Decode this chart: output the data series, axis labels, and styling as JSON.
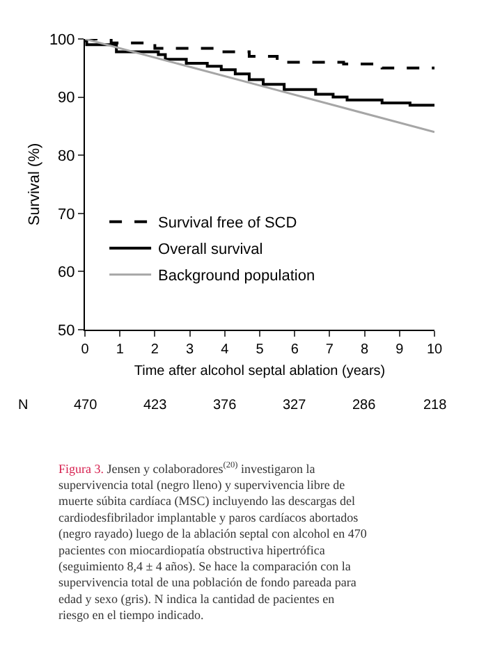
{
  "chart_data": {
    "type": "step",
    "xlabel": "Time after alcohol septal ablation (years)",
    "ylabel": "Survival (%)",
    "xlim": [
      0,
      10
    ],
    "xticks": [
      0,
      1,
      2,
      3,
      4,
      5,
      6,
      7,
      8,
      9,
      10
    ],
    "ylim": [
      50,
      100
    ],
    "yticks": [
      50,
      60,
      70,
      80,
      90,
      100
    ],
    "legend": "bottom left",
    "series": [
      {
        "name": "Survival free of SCD",
        "color": "#000000",
        "line_style": "dashed",
        "x": [
          0,
          0.75,
          2.0,
          3.8,
          4.7,
          5.5,
          7.4,
          8.5,
          10
        ],
        "values": [
          100,
          99.3,
          98.4,
          97.8,
          97.0,
          96.0,
          95.7,
          95.0,
          95.0
        ]
      },
      {
        "name": "Overall survival",
        "color": "#000000",
        "line_style": "solid",
        "x": [
          0,
          0.05,
          0.9,
          2.1,
          2.3,
          2.9,
          3.5,
          3.9,
          4.3,
          4.7,
          5.1,
          5.7,
          6.6,
          7.1,
          7.5,
          8.5,
          9.3,
          10
        ],
        "values": [
          99.7,
          99.0,
          97.8,
          97.3,
          96.5,
          95.8,
          95.3,
          94.7,
          94.0,
          93.0,
          92.2,
          91.3,
          90.5,
          90.0,
          89.5,
          89.0,
          88.6,
          88.6
        ]
      },
      {
        "name": "Background population",
        "color": "#a6a6a6",
        "line_style": "solid",
        "type": "line",
        "x": [
          0,
          5,
          10
        ],
        "values": [
          100,
          92,
          84
        ]
      }
    ],
    "annotations": [
      "N",
      "470",
      "423",
      "376",
      "327",
      "286",
      "218",
      "Figura 3. Jensen y colaboradores$^{(20)}$ investigaron la supervivencia total (negro lleno) y supervivencia libre de muerte súbita cardíaca (MSC) incluyendo las descargas del cardiodesfibrilador implantable y paros cardíacos abortados (negro rayado) luego de la ablación septal con alcohol en 470 pacientes con miocardiopatía obstructiva hipertrófica (seguimiento 8,4 ± 4 años). Se hace la comparación con la supervivencia total de una población de fondo pareada para edad y sexo (gris). N indica la cantidad de pacientes en riesgo en el tiempo indicado."
    ]
  }
}
